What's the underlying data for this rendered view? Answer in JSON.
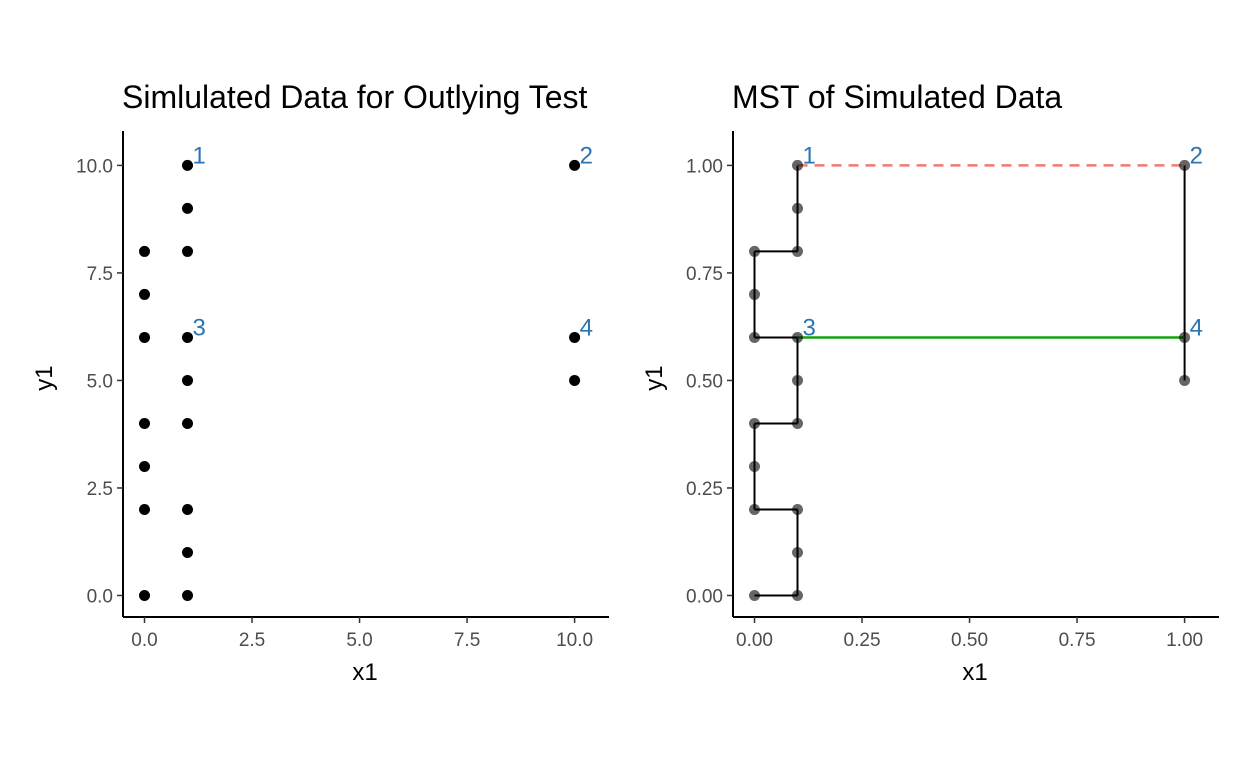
{
  "chart_data": [
    {
      "type": "scatter",
      "title": "Simlulated Data for Outlying Test",
      "xlabel": "x1",
      "ylabel": "y1",
      "xlim": [
        -0.5,
        10.8
      ],
      "ylim": [
        -0.5,
        10.8
      ],
      "xticks": [
        0,
        2.5,
        5,
        7.5,
        10
      ],
      "yticks": [
        0,
        2.5,
        5,
        7.5,
        10
      ],
      "xtick_labels": [
        "0.0",
        "2.5",
        "5.0",
        "7.5",
        "10.0"
      ],
      "ytick_labels": [
        "0.0",
        "2.5",
        "5.0",
        "7.5",
        "10.0"
      ],
      "grid": false,
      "point_color": "#000000",
      "label_color": "#2b75b3",
      "points": [
        {
          "x": 1,
          "y": 10
        },
        {
          "x": 1,
          "y": 9
        },
        {
          "x": 1,
          "y": 8
        },
        {
          "x": 1,
          "y": 6
        },
        {
          "x": 1,
          "y": 5
        },
        {
          "x": 1,
          "y": 4
        },
        {
          "x": 1,
          "y": 2
        },
        {
          "x": 1,
          "y": 1
        },
        {
          "x": 1,
          "y": 0
        },
        {
          "x": 0,
          "y": 8
        },
        {
          "x": 0,
          "y": 7
        },
        {
          "x": 0,
          "y": 6
        },
        {
          "x": 0,
          "y": 4
        },
        {
          "x": 0,
          "y": 3
        },
        {
          "x": 0,
          "y": 2
        },
        {
          "x": 0,
          "y": 0
        },
        {
          "x": 10,
          "y": 10
        },
        {
          "x": 10,
          "y": 6
        },
        {
          "x": 10,
          "y": 5
        }
      ],
      "point_labels": [
        {
          "text": "1",
          "x": 1,
          "y": 10
        },
        {
          "text": "2",
          "x": 10,
          "y": 10
        },
        {
          "text": "3",
          "x": 1,
          "y": 6
        },
        {
          "text": "4",
          "x": 10,
          "y": 6
        }
      ]
    },
    {
      "type": "scatter",
      "title": "MST of Simulated Data",
      "xlabel": "x1",
      "ylabel": "y1",
      "xlim": [
        -0.05,
        1.08
      ],
      "ylim": [
        -0.05,
        1.08
      ],
      "xticks": [
        0,
        0.25,
        0.5,
        0.75,
        1
      ],
      "yticks": [
        0,
        0.25,
        0.5,
        0.75,
        1
      ],
      "xtick_labels": [
        "0.00",
        "0.25",
        "0.50",
        "0.75",
        "1.00"
      ],
      "ytick_labels": [
        "0.00",
        "0.25",
        "0.50",
        "0.75",
        "1.00"
      ],
      "grid": false,
      "point_color": "#000000",
      "label_color": "#2b75b3",
      "points": [
        {
          "x": 0.1,
          "y": 1.0
        },
        {
          "x": 0.1,
          "y": 0.9
        },
        {
          "x": 0.1,
          "y": 0.8
        },
        {
          "x": 0.1,
          "y": 0.6
        },
        {
          "x": 0.1,
          "y": 0.5
        },
        {
          "x": 0.1,
          "y": 0.4
        },
        {
          "x": 0.1,
          "y": 0.2
        },
        {
          "x": 0.1,
          "y": 0.1
        },
        {
          "x": 0.1,
          "y": 0.0
        },
        {
          "x": 0.0,
          "y": 0.8
        },
        {
          "x": 0.0,
          "y": 0.7
        },
        {
          "x": 0.0,
          "y": 0.6
        },
        {
          "x": 0.0,
          "y": 0.4
        },
        {
          "x": 0.0,
          "y": 0.3
        },
        {
          "x": 0.0,
          "y": 0.2
        },
        {
          "x": 0.0,
          "y": 0.0
        },
        {
          "x": 1.0,
          "y": 1.0
        },
        {
          "x": 1.0,
          "y": 0.6
        },
        {
          "x": 1.0,
          "y": 0.5
        }
      ],
      "edges": [
        {
          "x1": 0.1,
          "y1": 1.0,
          "x2": 0.1,
          "y2": 0.9
        },
        {
          "x1": 0.1,
          "y1": 0.9,
          "x2": 0.1,
          "y2": 0.8
        },
        {
          "x1": 0.1,
          "y1": 0.8,
          "x2": 0.0,
          "y2": 0.8
        },
        {
          "x1": 0.0,
          "y1": 0.8,
          "x2": 0.0,
          "y2": 0.7
        },
        {
          "x1": 0.0,
          "y1": 0.7,
          "x2": 0.0,
          "y2": 0.6
        },
        {
          "x1": 0.0,
          "y1": 0.6,
          "x2": 0.1,
          "y2": 0.6
        },
        {
          "x1": 0.1,
          "y1": 0.6,
          "x2": 0.1,
          "y2": 0.5
        },
        {
          "x1": 0.1,
          "y1": 0.5,
          "x2": 0.1,
          "y2": 0.4
        },
        {
          "x1": 0.1,
          "y1": 0.4,
          "x2": 0.0,
          "y2": 0.4
        },
        {
          "x1": 0.0,
          "y1": 0.4,
          "x2": 0.0,
          "y2": 0.3
        },
        {
          "x1": 0.0,
          "y1": 0.3,
          "x2": 0.0,
          "y2": 0.2
        },
        {
          "x1": 0.0,
          "y1": 0.2,
          "x2": 0.1,
          "y2": 0.2
        },
        {
          "x1": 0.1,
          "y1": 0.2,
          "x2": 0.1,
          "y2": 0.1
        },
        {
          "x1": 0.1,
          "y1": 0.1,
          "x2": 0.1,
          "y2": 0.0
        },
        {
          "x1": 0.1,
          "y1": 0.0,
          "x2": 0.0,
          "y2": 0.0
        },
        {
          "x1": 1.0,
          "y1": 1.0,
          "x2": 1.0,
          "y2": 0.6
        },
        {
          "x1": 1.0,
          "y1": 0.6,
          "x2": 1.0,
          "y2": 0.5
        }
      ],
      "edge_color": "#000000",
      "highlight_edges": [
        {
          "x1": 0.1,
          "y1": 1.0,
          "x2": 1.0,
          "y2": 1.0,
          "color": "#f07b6e",
          "style": "dashed"
        },
        {
          "x1": 0.1,
          "y1": 0.6,
          "x2": 1.0,
          "y2": 0.6,
          "color": "#14a30f",
          "style": "solid"
        }
      ],
      "point_labels": [
        {
          "text": "1",
          "x": 0.1,
          "y": 1.0
        },
        {
          "text": "2",
          "x": 1.0,
          "y": 1.0
        },
        {
          "text": "3",
          "x": 0.1,
          "y": 0.6
        },
        {
          "text": "4",
          "x": 1.0,
          "y": 0.6
        }
      ]
    }
  ]
}
